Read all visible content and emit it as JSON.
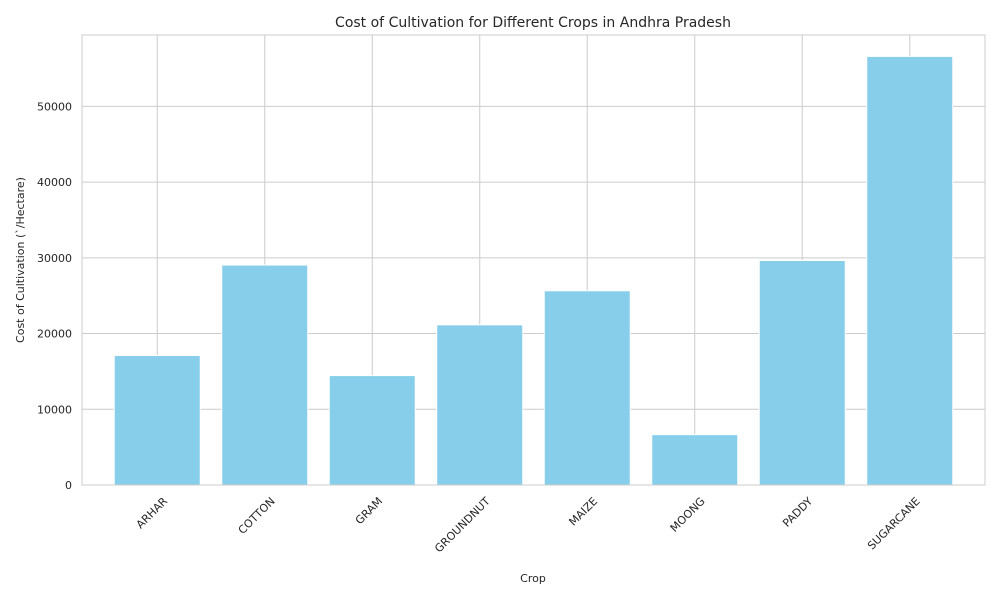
{
  "chart_data": {
    "type": "bar",
    "title": "Cost of Cultivation for Different Crops in Andhra Pradesh",
    "xlabel": "Crop",
    "ylabel": "Cost of Cultivation (`/Hectare)",
    "categories": [
      "ARHAR",
      "COTTON",
      "GRAM",
      "GROUNDNUT",
      "MAIZE",
      "MOONG",
      "PADDY",
      "SUGARCANE"
    ],
    "values": [
      17100,
      29050,
      14450,
      21150,
      25650,
      6650,
      29650,
      56600
    ],
    "ylim": [
      0,
      59430
    ],
    "yticks": [
      0,
      10000,
      20000,
      30000,
      40000,
      50000
    ],
    "grid": true,
    "bar_color": "#87CEEB",
    "grid_color": "#cccccc",
    "legend": "none"
  }
}
